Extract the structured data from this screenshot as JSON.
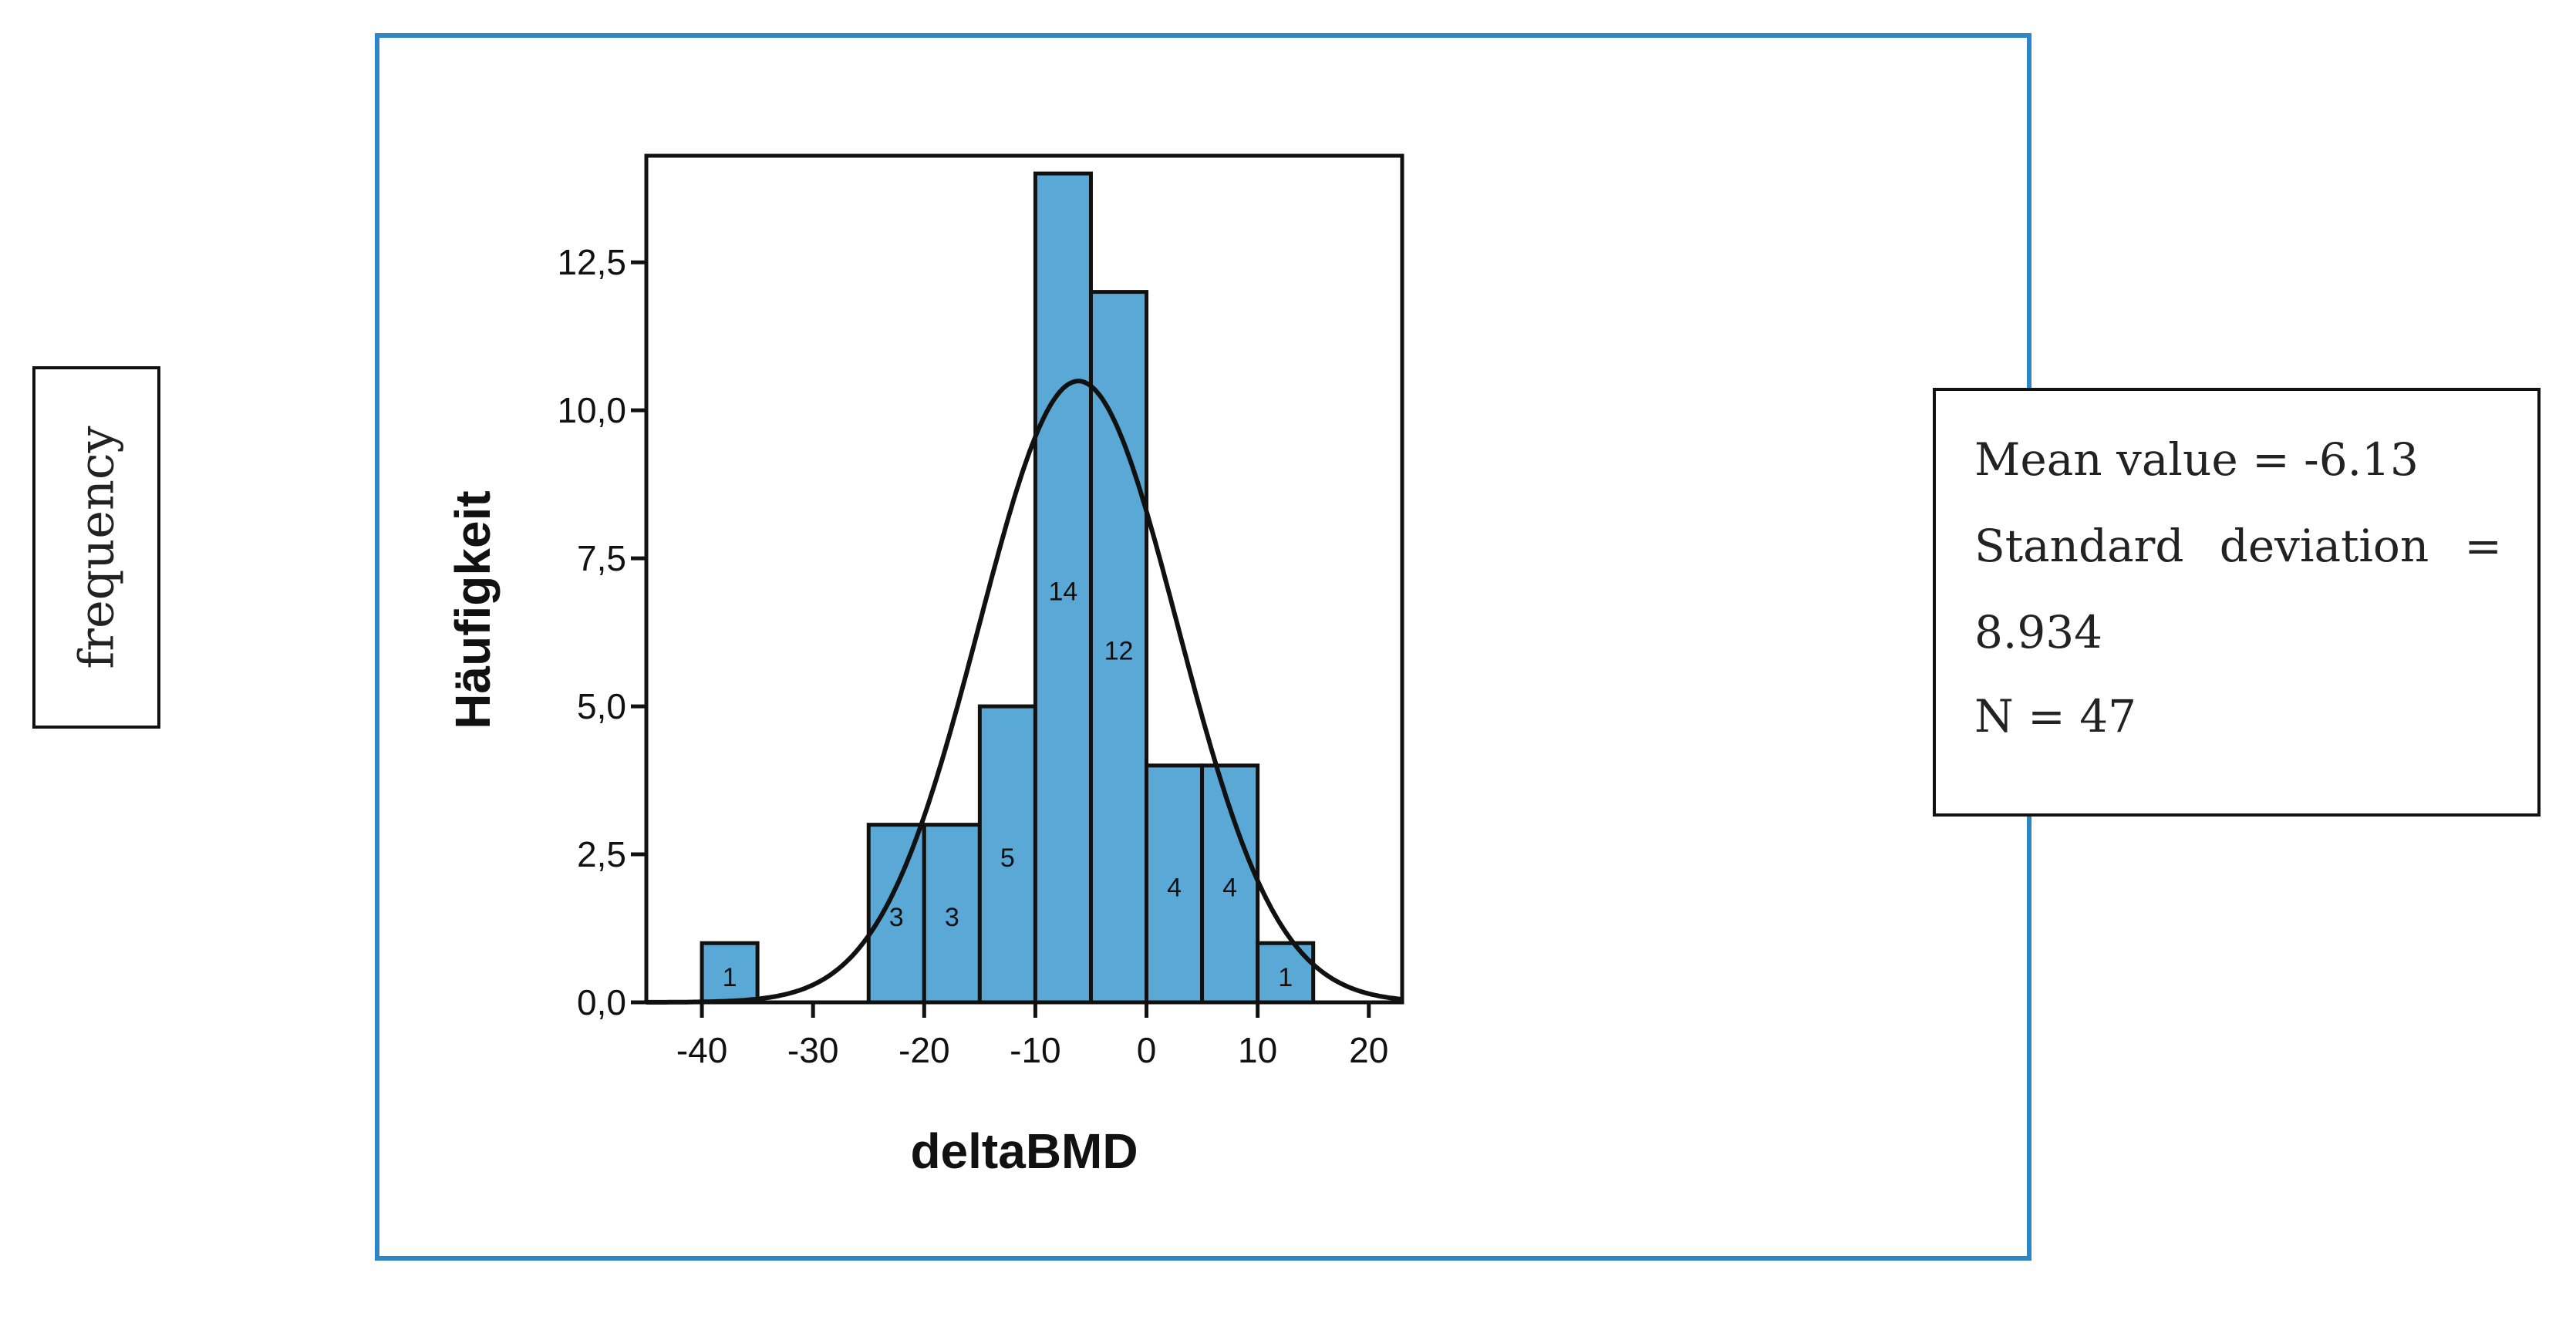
{
  "side_label": "frequency",
  "stats": {
    "line1": "Mean value = -6.13",
    "line2_words": [
      "Standard",
      "deviation",
      "="
    ],
    "line3": "8.934",
    "line4": "N = 47"
  },
  "colors": {
    "bar": "#5aa8d6",
    "frame": "#2f86c4",
    "curve": "#111111"
  },
  "chart_data": {
    "type": "bar",
    "xlabel": "deltaBMD",
    "ylabel": "Häufigkeit",
    "xlim": [
      -45,
      23
    ],
    "ylim": [
      0,
      14.3
    ],
    "x_ticks": [
      -40,
      -30,
      -20,
      -10,
      0,
      10,
      20
    ],
    "x_tick_labels": [
      "-40",
      "-30",
      "-20",
      "-10",
      "0",
      "10",
      "20"
    ],
    "y_ticks": [
      0,
      2.5,
      5,
      7.5,
      10,
      12.5
    ],
    "y_tick_labels": [
      "0,0",
      "2,5",
      "5,0",
      "7,5",
      "10,0",
      "12,5"
    ],
    "bin_edges": [
      -40,
      -35,
      -30,
      -25,
      -20,
      -15,
      -10,
      -5,
      0,
      5,
      10,
      15
    ],
    "bin_counts": [
      1,
      0,
      0,
      3,
      3,
      5,
      14,
      12,
      4,
      4,
      1
    ],
    "normal_curve": {
      "mean": -6.13,
      "sd": 8.934,
      "n": 47,
      "bin_width": 5
    }
  }
}
